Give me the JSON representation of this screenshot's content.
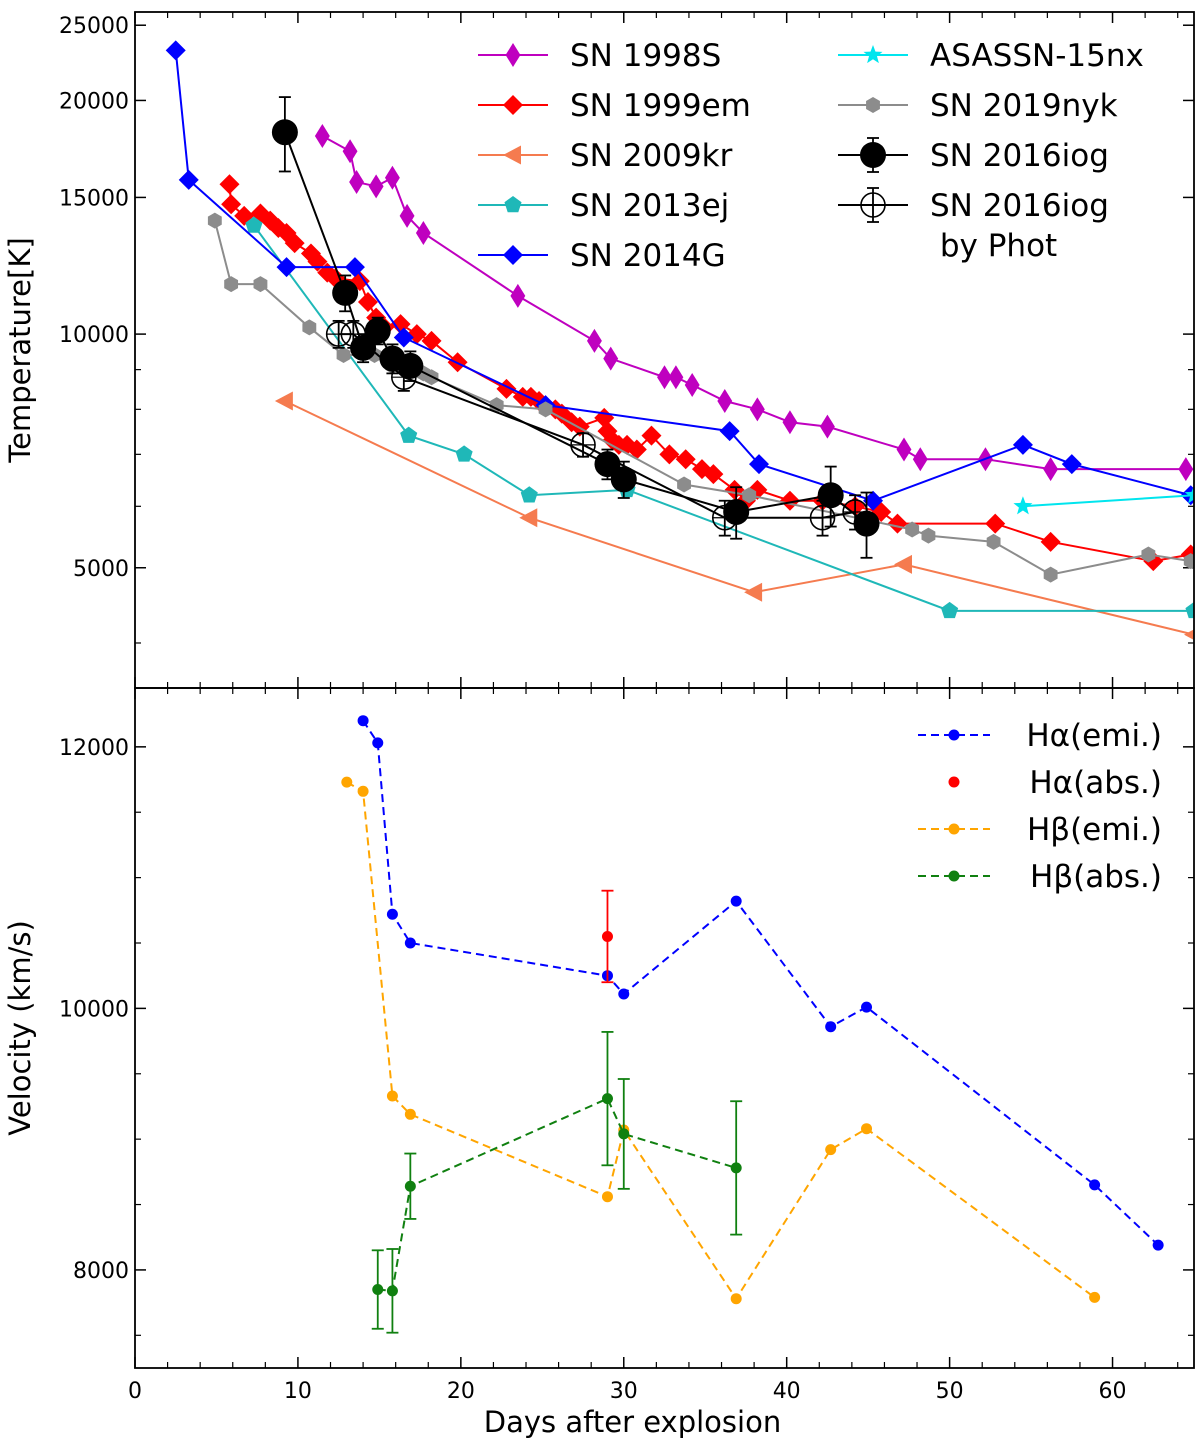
{
  "chart_data": [
    {
      "type": "line",
      "panel": "top",
      "ylabel": "Temperature[K]",
      "yscale": "log",
      "xlim": [
        0,
        65
      ],
      "ylim": [
        3500,
        26000
      ],
      "yticks": [
        5000,
        10000,
        15000,
        20000,
        25000
      ],
      "yticklabels": [
        "5000",
        "10000",
        "15000",
        "20000",
        "25000"
      ],
      "legend_position": "top-right",
      "series": [
        {
          "name": "SN 1998S",
          "color": "#bf00bf",
          "marker": "thin-diamond",
          "line": "solid",
          "points": [
            [
              11.5,
              18000
            ],
            [
              13.2,
              17200
            ],
            [
              13.6,
              15700
            ],
            [
              14.8,
              15500
            ],
            [
              15.8,
              15900
            ],
            [
              16.7,
              14200
            ],
            [
              17.7,
              13500
            ],
            [
              23.5,
              11200
            ],
            [
              28.2,
              9800
            ],
            [
              29.2,
              9300
            ],
            [
              32.5,
              8800
            ],
            [
              33.2,
              8800
            ],
            [
              34.2,
              8600
            ],
            [
              36.2,
              8200
            ],
            [
              38.2,
              8000
            ],
            [
              40.2,
              7700
            ],
            [
              42.5,
              7600
            ],
            [
              47.2,
              7100
            ],
            [
              48.2,
              6900
            ],
            [
              52.2,
              6900
            ],
            [
              56.2,
              6700
            ],
            [
              64.5,
              6700
            ]
          ]
        },
        {
          "name": "SN 1999em",
          "color": "#ff0000",
          "marker": "diamond",
          "line": "solid",
          "points": [
            [
              5.8,
              15600
            ],
            [
              5.9,
              14700
            ],
            [
              6.7,
              14200
            ],
            [
              7.7,
              14300
            ],
            [
              8.3,
              14000
            ],
            [
              8.8,
              13700
            ],
            [
              9.3,
              13500
            ],
            [
              9.8,
              13100
            ],
            [
              10.8,
              12700
            ],
            [
              11.2,
              12400
            ],
            [
              11.8,
              12000
            ],
            [
              12.3,
              11800
            ],
            [
              13.8,
              11700
            ],
            [
              14.3,
              11000
            ],
            [
              14.8,
              10500
            ],
            [
              15.3,
              10200
            ],
            [
              16.3,
              10300
            ],
            [
              17.3,
              10000
            ],
            [
              18.2,
              9800
            ],
            [
              19.8,
              9200
            ],
            [
              22.8,
              8500
            ],
            [
              23.8,
              8300
            ],
            [
              24.3,
              8300
            ],
            [
              24.8,
              8200
            ],
            [
              25.8,
              8000
            ],
            [
              26.2,
              7900
            ],
            [
              26.8,
              7700
            ],
            [
              27.3,
              7600
            ],
            [
              28.8,
              7800
            ],
            [
              29.0,
              7500
            ],
            [
              29.3,
              7300
            ],
            [
              29.7,
              7200
            ],
            [
              30.2,
              7200
            ],
            [
              30.8,
              7100
            ],
            [
              31.7,
              7400
            ],
            [
              32.8,
              7000
            ],
            [
              33.8,
              6900
            ],
            [
              34.8,
              6700
            ],
            [
              35.5,
              6600
            ],
            [
              36.8,
              6300
            ],
            [
              37.5,
              6100
            ],
            [
              38.2,
              6300
            ],
            [
              40.2,
              6100
            ],
            [
              42.2,
              6100
            ],
            [
              44.2,
              6000
            ],
            [
              45.8,
              5900
            ],
            [
              46.8,
              5700
            ],
            [
              52.8,
              5700
            ],
            [
              56.2,
              5400
            ],
            [
              62.5,
              5100
            ],
            [
              64.8,
              5200
            ]
          ]
        },
        {
          "name": "SN 2009kr",
          "color": "#f57b4f",
          "marker": "triangle-left",
          "line": "solid",
          "points": [
            [
              9.2,
              8200
            ],
            [
              24.2,
              5800
            ],
            [
              38.0,
              4650
            ],
            [
              47.2,
              5050
            ],
            [
              65,
              4100
            ]
          ]
        },
        {
          "name": "SN 2013ej",
          "color": "#1fb8b8",
          "marker": "pentagon",
          "line": "solid",
          "points": [
            [
              7.3,
              13800
            ],
            [
              16.8,
              7400
            ],
            [
              20.2,
              7000
            ],
            [
              24.2,
              6200
            ],
            [
              30.2,
              6300
            ],
            [
              50.0,
              4400
            ],
            [
              65,
              4400
            ]
          ]
        },
        {
          "name": "SN 2014G",
          "color": "#0000ff",
          "marker": "diamond",
          "line": "solid",
          "points": [
            [
              2.5,
              23200
            ],
            [
              3.3,
              15800
            ],
            [
              9.3,
              12200
            ],
            [
              13.5,
              12200
            ],
            [
              16.5,
              9900
            ],
            [
              25.2,
              8100
            ],
            [
              36.5,
              7500
            ],
            [
              38.3,
              6800
            ],
            [
              45.3,
              6100
            ],
            [
              54.5,
              7200
            ],
            [
              57.5,
              6800
            ],
            [
              64.8,
              6200
            ]
          ]
        },
        {
          "name": "ASASSN-15nx",
          "color": "#00e5ee",
          "marker": "star",
          "line": "solid",
          "points": [
            [
              54.5,
              6000
            ],
            [
              65,
              6200
            ]
          ]
        },
        {
          "name": "SN 2019nyk",
          "color": "#8c8c8c",
          "marker": "hexagon",
          "line": "solid",
          "points": [
            [
              4.9,
              14000
            ],
            [
              5.9,
              11600
            ],
            [
              7.7,
              11600
            ],
            [
              10.7,
              10200
            ],
            [
              12.8,
              9400
            ],
            [
              14.7,
              9400
            ],
            [
              15.8,
              9100
            ],
            [
              17.7,
              8900
            ],
            [
              18.2,
              8800
            ],
            [
              22.2,
              8100
            ],
            [
              25.2,
              8000
            ],
            [
              33.7,
              6400
            ],
            [
              37.7,
              6200
            ],
            [
              47.7,
              5600
            ],
            [
              48.7,
              5500
            ],
            [
              52.7,
              5400
            ],
            [
              56.2,
              4900
            ],
            [
              62.2,
              5200
            ],
            [
              64.8,
              5100
            ]
          ]
        },
        {
          "name": "SN 2016iog",
          "color": "#000000",
          "marker": "circle",
          "line": "solid",
          "points": [
            [
              9.2,
              18200,
              2000
            ],
            [
              12.9,
              11300,
              600
            ],
            [
              14.0,
              9600,
              400
            ],
            [
              14.9,
              10100,
              400
            ],
            [
              15.8,
              9300,
              400
            ],
            [
              16.9,
              9100,
              400
            ],
            [
              29.0,
              6800,
              300
            ],
            [
              30.0,
              6500,
              350
            ],
            [
              36.9,
              5900,
              450
            ],
            [
              42.7,
              6200,
              550
            ],
            [
              44.9,
              5700,
              550
            ]
          ]
        },
        {
          "name": "SN 2016iog\n by Phot",
          "color": "#000000",
          "marker": "open-circle-plus",
          "line": "solid",
          "points": [
            [
              12.5,
              10000,
              400
            ],
            [
              13.4,
              10000,
              400
            ],
            [
              16.5,
              8800,
              350
            ],
            [
              27.5,
              7200,
              250
            ],
            [
              36.2,
              5800,
              300
            ],
            [
              42.2,
              5800,
              300
            ],
            [
              44.2,
              5900,
              300
            ]
          ]
        }
      ]
    },
    {
      "type": "line",
      "panel": "bottom",
      "xlabel": "Days after explosion",
      "ylabel": "Velocity (km/s)",
      "xlim": [
        0,
        65
      ],
      "ylim": [
        7250,
        12450
      ],
      "xticks": [
        0,
        10,
        20,
        30,
        40,
        50,
        60
      ],
      "xticklabels": [
        "0",
        "10",
        "20",
        "30",
        "40",
        "50",
        "60"
      ],
      "yticks": [
        8000,
        10000,
        12000
      ],
      "yticklabels": [
        "8000",
        "10000",
        "12000"
      ],
      "legend_position": "top-right",
      "series": [
        {
          "name": "Hα(emi.)",
          "color": "#0000ff",
          "marker": "dot",
          "line": "dashed",
          "points": [
            [
              14.0,
              12200
            ],
            [
              14.9,
              12030
            ],
            [
              15.8,
              10720
            ],
            [
              16.9,
              10500
            ],
            [
              29.0,
              10250
            ],
            [
              30.0,
              10110
            ],
            [
              36.9,
              10820
            ],
            [
              42.7,
              9860
            ],
            [
              44.9,
              10010
            ],
            [
              58.9,
              8650
            ],
            [
              62.8,
              8190
            ]
          ]
        },
        {
          "name": "Hα(abs.)",
          "color": "#ff0000",
          "marker": "dot",
          "line": "none",
          "points": [
            [
              29.0,
              10550,
              350
            ]
          ]
        },
        {
          "name": "Hβ(emi.)",
          "color": "#ffa500",
          "marker": "dot",
          "line": "dashed",
          "points": [
            [
              13.0,
              11730
            ],
            [
              14.0,
              11660
            ],
            [
              15.8,
              9330
            ],
            [
              16.9,
              9190
            ],
            [
              29.0,
              8560
            ],
            [
              30.0,
              9070
            ],
            [
              36.9,
              7780
            ],
            [
              42.7,
              8920
            ],
            [
              44.9,
              9080
            ],
            [
              58.9,
              7790
            ]
          ]
        },
        {
          "name": "Hβ(abs.)",
          "color": "#108010",
          "marker": "dot",
          "line": "dashed",
          "points": [
            [
              14.9,
              7850,
              300
            ],
            [
              15.8,
              7840,
              320
            ],
            [
              16.9,
              8640,
              250
            ],
            [
              29.0,
              9310,
              510
            ],
            [
              30.0,
              9040,
              420
            ],
            [
              36.9,
              8780,
              510
            ]
          ]
        }
      ]
    }
  ]
}
